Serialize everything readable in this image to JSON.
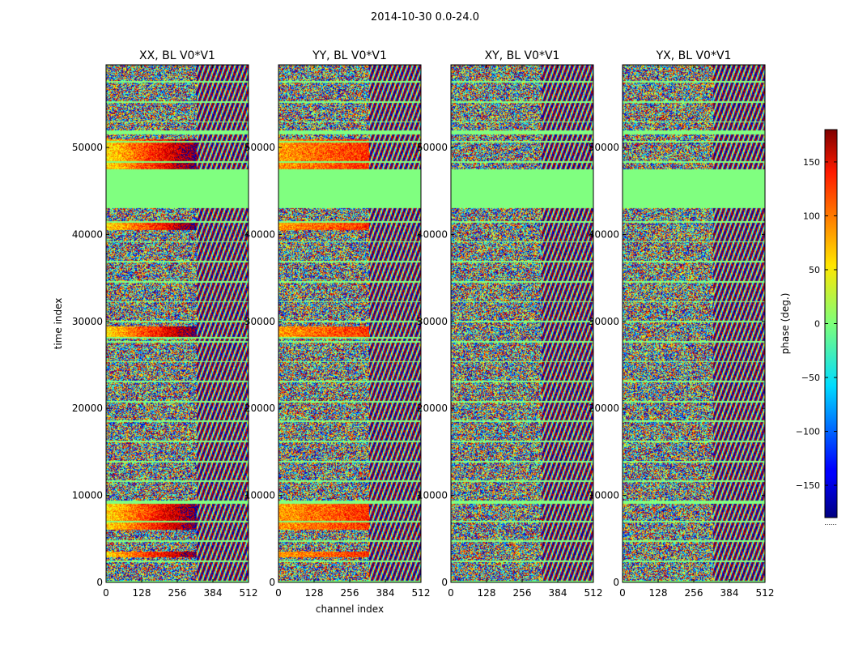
{
  "figure": {
    "suptitle": "2014-10-30 0.0-24.0",
    "corner_mark": "......"
  },
  "chart_data": [
    {
      "type": "heatmap",
      "title": "XX, BL V0*V1",
      "polarization": "XX",
      "xlabel": "",
      "ylabel": "time index",
      "xticks": [
        0,
        128,
        256,
        384,
        512
      ],
      "yticks": [
        0,
        10000,
        20000,
        30000,
        40000,
        50000
      ],
      "xlim": [
        0,
        512
      ],
      "ylim": [
        0,
        59500
      ],
      "coherent_low_channel_max": 325,
      "coherent_phase_start": 55,
      "coherent_phase_end": 180,
      "zero_phase_time_bands": [
        [
          43000,
          47500
        ],
        [
          51500,
          52000
        ],
        [
          9000,
          9300
        ],
        [
          28000,
          28200
        ]
      ],
      "coherent_time_bands": [
        [
          47500,
          51000
        ],
        [
          40500,
          41500
        ],
        [
          28200,
          29400
        ],
        [
          2800,
          3500
        ],
        [
          6000,
          9000
        ]
      ]
    },
    {
      "type": "heatmap",
      "title": "YY, BL V0*V1",
      "polarization": "YY",
      "xlabel": "channel index",
      "ylabel": "",
      "xticks": [
        0,
        128,
        256,
        384,
        512
      ],
      "yticks": [
        0,
        10000,
        20000,
        30000,
        40000,
        50000
      ],
      "xlim": [
        0,
        512
      ],
      "ylim": [
        0,
        59500
      ],
      "coherent_low_channel_max": 325,
      "coherent_phase_start": 80,
      "coherent_phase_end": 120,
      "zero_phase_time_bands": [
        [
          43000,
          47500
        ],
        [
          51500,
          52000
        ],
        [
          9000,
          9300
        ],
        [
          28000,
          28200
        ]
      ],
      "coherent_time_bands": [
        [
          47500,
          51000
        ],
        [
          40500,
          41500
        ],
        [
          28200,
          29400
        ],
        [
          2800,
          3500
        ],
        [
          6000,
          9000
        ]
      ]
    },
    {
      "type": "heatmap",
      "title": "XY, BL V0*V1",
      "polarization": "XY",
      "xlabel": "",
      "ylabel": "",
      "xticks": [
        0,
        128,
        256,
        384,
        512
      ],
      "yticks": [
        0,
        10000,
        20000,
        30000,
        40000,
        50000
      ],
      "xlim": [
        0,
        512
      ],
      "ylim": [
        0,
        59500
      ],
      "coherent_low_channel_max": 0,
      "coherent_phase_start": 0,
      "coherent_phase_end": 0,
      "zero_phase_time_bands": [
        [
          43000,
          47500
        ],
        [
          51500,
          52000
        ],
        [
          9000,
          9300
        ]
      ],
      "coherent_time_bands": []
    },
    {
      "type": "heatmap",
      "title": "YX, BL V0*V1",
      "polarization": "YX",
      "xlabel": "",
      "ylabel": "",
      "xticks": [
        0,
        128,
        256,
        384,
        512
      ],
      "yticks": [
        0,
        10000,
        20000,
        30000,
        40000,
        50000
      ],
      "xlim": [
        0,
        512
      ],
      "ylim": [
        0,
        59500
      ],
      "coherent_low_channel_max": 0,
      "coherent_phase_start": 0,
      "coherent_phase_end": 0,
      "zero_phase_time_bands": [
        [
          43000,
          47500
        ],
        [
          51500,
          52000
        ],
        [
          9000,
          9300
        ]
      ],
      "coherent_time_bands": []
    }
  ],
  "colorbar": {
    "label": "phase (deg.)",
    "colormap": "jet",
    "range": [
      -180,
      180
    ],
    "ticks": [
      -150,
      -100,
      -50,
      0,
      50,
      100,
      150
    ],
    "tick_labels": [
      "−150",
      "−100",
      "−50",
      "0",
      "50",
      "100",
      "150"
    ]
  }
}
